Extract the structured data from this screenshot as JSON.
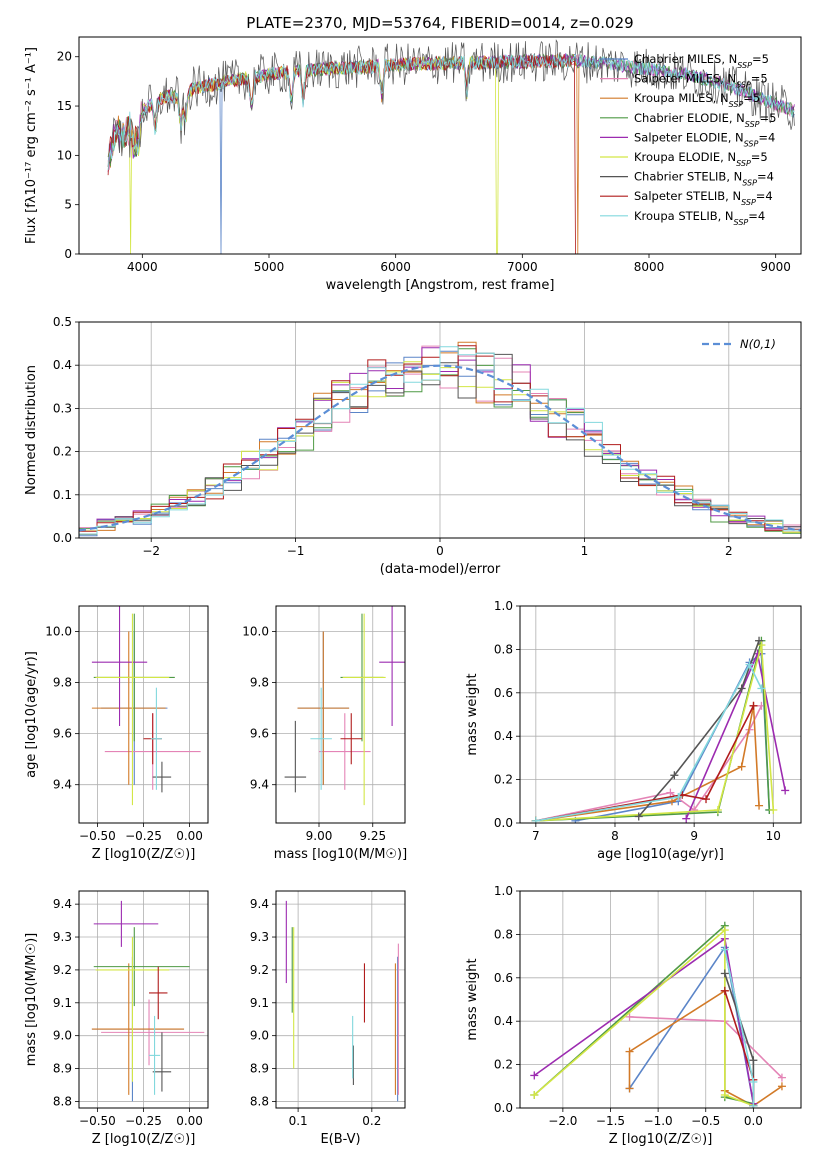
{
  "figure_title": "PLATE=2370, MJD=53764, FIBERID=0014, z=0.029",
  "colors": {
    "Chabrier MILES": "#5b85c8",
    "Salpeter MILES": "#e484b6",
    "Kroupa MILES": "#d27a28",
    "Chabrier ELODIE": "#4f9a45",
    "Salpeter ELODIE": "#9c2bb0",
    "Kroupa ELODIE": "#d3e646",
    "Chabrier STELIB": "#555555",
    "Salpeter STELIB": "#b01c1c",
    "Kroupa STELIB": "#82d8dd"
  },
  "chart_data": [
    {
      "id": "spectrum",
      "type": "line",
      "xlabel": "wavelength [Angstrom, rest frame]",
      "ylabel": "Flux [fλ10⁻¹⁷ erg cm⁻² s⁻¹ A⁻¹]",
      "xlim": [
        3500,
        9200
      ],
      "ylim": [
        0,
        22
      ],
      "xticks": [
        4000,
        5000,
        6000,
        7000,
        8000,
        9000
      ],
      "yticks": [
        0,
        5,
        10,
        15,
        20
      ],
      "legend_position": "top-right",
      "legend": [
        "Chabrier MILES, N_SSP=5",
        "Salpeter MILES, N_SSP=5",
        "Kroupa MILES, N_SSP=5",
        "Chabrier ELODIE, N_SSP=5",
        "Salpeter ELODIE, N_SSP=4",
        "Kroupa ELODIE, N_SSP=5",
        "Chabrier STELIB, N_SSP=4",
        "Salpeter STELIB, N_SSP=4",
        "Kroupa STELIB, N_SSP=4"
      ],
      "legend_keys": [
        "Chabrier MILES",
        "Salpeter MILES",
        "Kroupa MILES",
        "Chabrier ELODIE",
        "Salpeter ELODIE",
        "Kroupa ELODIE",
        "Chabrier STELIB",
        "Salpeter STELIB",
        "Kroupa STELIB"
      ],
      "continuum": {
        "x": [
          3720,
          3760,
          3800,
          3850,
          3900,
          3950,
          4000,
          4100,
          4200,
          4300,
          4400,
          4600,
          4800,
          5000,
          5200,
          5500,
          5800,
          6000,
          6300,
          6600,
          7000,
          7400,
          7600,
          8000,
          8300,
          8600,
          8800,
          9000,
          9150
        ],
        "y": [
          8.5,
          11,
          12.5,
          11.8,
          12.8,
          13.5,
          14.5,
          15.5,
          16,
          15.8,
          16.8,
          17.3,
          17.8,
          18.2,
          18.5,
          18.8,
          19,
          19.2,
          19.3,
          19.4,
          19.5,
          19.6,
          19.4,
          18.8,
          18.2,
          17.2,
          16.2,
          15.2,
          14.5
        ]
      },
      "series_span": {
        "Kroupa MILES": [
          3730,
          7450
        ],
        "Salpeter STELIB": [
          3730,
          7420
        ],
        "Kroupa ELODIE": [
          3880,
          6820
        ]
      },
      "series_drops": [
        {
          "series": "Kroupa ELODIE",
          "x": 3910
        },
        {
          "series": "Chabrier MILES",
          "x": 4620
        },
        {
          "series": "Kroupa ELODIE",
          "x": 6800
        },
        {
          "series": "Salpeter STELIB",
          "x": 7420
        },
        {
          "series": "Kroupa MILES",
          "x": 7440
        }
      ]
    },
    {
      "id": "residuals",
      "type": "bar",
      "histtype": "step",
      "xlabel": "(data-model)/error",
      "ylabel": "Normed distribution",
      "xlim": [
        -2.5,
        2.5
      ],
      "ylim": [
        0,
        0.5
      ],
      "xticks": [
        -2,
        -1,
        0,
        1,
        2
      ],
      "yticks": [
        0.0,
        0.1,
        0.2,
        0.3,
        0.4,
        0.5
      ],
      "bin_width": 0.125,
      "grid": true,
      "legend_position": "top-right",
      "reference_curve": {
        "name": "N(0,1)",
        "mean": 0,
        "sigma": 1,
        "color": "#5b8ed6",
        "style": "dashed"
      }
    },
    {
      "id": "age_vs_Z",
      "type": "scatter",
      "xlabel": "Z [log10(Z/Z☉)]",
      "ylabel": "age  [log10(age/yr)]",
      "xlim": [
        -0.6,
        0.1
      ],
      "ylim": [
        9.25,
        10.1
      ],
      "xticks": [
        -0.5,
        -0.25,
        0.0
      ],
      "yticks": [
        9.4,
        9.6,
        9.8,
        10.0
      ],
      "grid": true,
      "points": [
        {
          "series": "Chabrier MILES",
          "x": -0.3,
          "y": 9.7,
          "xerr": [
            0.18,
            0.18
          ],
          "yerr": [
            0.3,
            0.3
          ]
        },
        {
          "series": "Salpeter MILES",
          "x": -0.2,
          "y": 9.53,
          "xerr": [
            0.26,
            0.26
          ],
          "yerr": [
            0.15,
            0.15
          ]
        },
        {
          "series": "Kroupa MILES",
          "x": -0.33,
          "y": 9.7,
          "xerr": [
            0.2,
            0.2
          ],
          "yerr": [
            0.3,
            0.3
          ]
        },
        {
          "series": "Chabrier ELODIE",
          "x": -0.3,
          "y": 9.82,
          "xerr": [
            0.22,
            0.22
          ],
          "yerr": [
            0.25,
            0.25
          ]
        },
        {
          "series": "Salpeter ELODIE",
          "x": -0.38,
          "y": 9.88,
          "xerr": [
            0.15,
            0.15
          ],
          "yerr": [
            0.25,
            0.25
          ]
        },
        {
          "series": "Kroupa ELODIE",
          "x": -0.31,
          "y": 9.82,
          "xerr": [
            0.2,
            0.2
          ],
          "yerr": [
            0.5,
            0.25
          ]
        },
        {
          "series": "Chabrier STELIB",
          "x": -0.15,
          "y": 9.43,
          "xerr": [
            0.05,
            0.05
          ],
          "yerr": [
            0.06,
            0.06
          ]
        },
        {
          "series": "Salpeter STELIB",
          "x": -0.2,
          "y": 9.58,
          "xerr": [
            0.05,
            0.05
          ],
          "yerr": [
            0.1,
            0.1
          ]
        },
        {
          "series": "Kroupa STELIB",
          "x": -0.18,
          "y": 9.58,
          "xerr": [
            0.03,
            0.03
          ],
          "yerr": [
            0.2,
            0.2
          ]
        }
      ]
    },
    {
      "id": "age_vs_mass",
      "type": "scatter",
      "xlabel": "mass [log10(M/M☉)]",
      "ylabel": "",
      "xlim": [
        8.8,
        9.4
      ],
      "ylim": [
        9.25,
        10.1
      ],
      "xticks": [
        9.0,
        9.25
      ],
      "yticks": [
        9.4,
        9.6,
        9.8,
        10.0
      ],
      "grid": true,
      "points": [
        {
          "series": "Chabrier MILES",
          "x": 9.02,
          "y": 9.7,
          "xerr": [
            0.12,
            0.12
          ],
          "yerr": [
            0.3,
            0.3
          ]
        },
        {
          "series": "Salpeter MILES",
          "x": 9.12,
          "y": 9.53,
          "xerr": [
            0.12,
            0.12
          ],
          "yerr": [
            0.15,
            0.15
          ]
        },
        {
          "series": "Kroupa MILES",
          "x": 9.02,
          "y": 9.7,
          "xerr": [
            0.12,
            0.12
          ],
          "yerr": [
            0.3,
            0.3
          ]
        },
        {
          "series": "Chabrier ELODIE",
          "x": 9.2,
          "y": 9.82,
          "xerr": [
            0.1,
            0.1
          ],
          "yerr": [
            0.25,
            0.25
          ]
        },
        {
          "series": "Salpeter ELODIE",
          "x": 9.34,
          "y": 9.88,
          "xerr": [
            0.06,
            0.06
          ],
          "yerr": [
            0.25,
            0.25
          ]
        },
        {
          "series": "Kroupa ELODIE",
          "x": 9.21,
          "y": 9.82,
          "xerr": [
            0.1,
            0.1
          ],
          "yerr": [
            0.5,
            0.25
          ]
        },
        {
          "series": "Chabrier STELIB",
          "x": 8.89,
          "y": 9.43,
          "xerr": [
            0.05,
            0.05
          ],
          "yerr": [
            0.06,
            0.22
          ]
        },
        {
          "series": "Salpeter STELIB",
          "x": 9.15,
          "y": 9.58,
          "xerr": [
            0.05,
            0.05
          ],
          "yerr": [
            0.1,
            0.1
          ]
        },
        {
          "series": "Kroupa STELIB",
          "x": 9.01,
          "y": 9.58,
          "xerr": [
            0.05,
            0.05
          ],
          "yerr": [
            0.2,
            0.2
          ]
        }
      ]
    },
    {
      "id": "weight_vs_age",
      "type": "line",
      "xlabel": "age  [log10(age/yr)]",
      "ylabel": "mass weight",
      "xlim": [
        6.8,
        10.35
      ],
      "ylim": [
        0,
        1.0
      ],
      "xticks": [
        7,
        8,
        9,
        10
      ],
      "yticks": [
        0.0,
        0.2,
        0.4,
        0.6,
        0.8,
        1.0
      ],
      "grid": true,
      "series": [
        {
          "name": "Chabrier MILES",
          "x": [
            7.5,
            8.8,
            9.7,
            9.85,
            9.95
          ],
          "y": [
            0.01,
            0.1,
            0.74,
            0.78,
            0.06
          ]
        },
        {
          "name": "Salpeter MILES",
          "x": [
            7.0,
            8.7,
            9.0,
            9.7,
            9.85
          ],
          "y": [
            0.01,
            0.14,
            0.06,
            0.43,
            0.54
          ]
        },
        {
          "name": "Kroupa MILES",
          "x": [
            7.0,
            8.72,
            9.6,
            9.75,
            9.82
          ],
          "y": [
            0.01,
            0.1,
            0.26,
            0.54,
            0.08
          ]
        },
        {
          "name": "Chabrier ELODIE",
          "x": [
            7.0,
            9.3,
            9.85,
            9.95
          ],
          "y": [
            0.01,
            0.05,
            0.84,
            0.06
          ]
        },
        {
          "name": "Salpeter ELODIE",
          "x": [
            8.9,
            9.8,
            10.15
          ],
          "y": [
            0.02,
            0.78,
            0.15
          ]
        },
        {
          "name": "Kroupa ELODIE",
          "x": [
            7.0,
            9.3,
            9.85,
            10.0
          ],
          "y": [
            0.01,
            0.06,
            0.82,
            0.06
          ]
        },
        {
          "name": "Chabrier STELIB",
          "x": [
            8.3,
            8.75,
            9.6,
            9.82
          ],
          "y": [
            0.03,
            0.22,
            0.62,
            0.84
          ]
        },
        {
          "name": "Salpeter STELIB",
          "x": [
            7.0,
            8.85,
            9.15,
            9.75
          ],
          "y": [
            0.01,
            0.13,
            0.11,
            0.54
          ]
        },
        {
          "name": "Kroupa STELIB",
          "x": [
            7.0,
            8.8,
            9.7,
            9.85
          ],
          "y": [
            0.01,
            0.12,
            0.73,
            0.62
          ]
        }
      ]
    },
    {
      "id": "mass_vs_Z",
      "type": "scatter",
      "xlabel": "Z [log10(Z/Z☉)]",
      "ylabel": "mass [log10(M/M☉)]",
      "xlim": [
        -0.6,
        0.1
      ],
      "ylim": [
        8.78,
        9.44
      ],
      "xticks": [
        -0.5,
        -0.25,
        0.0
      ],
      "yticks": [
        8.8,
        8.9,
        9.0,
        9.1,
        9.2,
        9.3,
        9.4
      ],
      "grid": true,
      "points": [
        {
          "series": "Chabrier MILES",
          "x": -0.31,
          "y": 9.02,
          "xerr": [
            0.22,
            0.28
          ],
          "yerr": [
            0.22,
            0.22
          ]
        },
        {
          "series": "Salpeter MILES",
          "x": -0.22,
          "y": 9.01,
          "xerr": [
            0.26,
            0.3
          ],
          "yerr": [
            0.1,
            0.1
          ]
        },
        {
          "series": "Kroupa MILES",
          "x": -0.33,
          "y": 9.02,
          "xerr": [
            0.2,
            0.3
          ],
          "yerr": [
            0.2,
            0.2
          ]
        },
        {
          "series": "Chabrier ELODIE",
          "x": -0.3,
          "y": 9.21,
          "xerr": [
            0.22,
            0.3
          ],
          "yerr": [
            0.12,
            0.12
          ]
        },
        {
          "series": "Salpeter ELODIE",
          "x": -0.37,
          "y": 9.34,
          "xerr": [
            0.15,
            0.2
          ],
          "yerr": [
            0.07,
            0.07
          ]
        },
        {
          "series": "Kroupa ELODIE",
          "x": -0.31,
          "y": 9.2,
          "xerr": [
            0.2,
            0.2
          ],
          "yerr": [
            0.34,
            0.1
          ]
        },
        {
          "series": "Chabrier STELIB",
          "x": -0.15,
          "y": 8.89,
          "xerr": [
            0.05,
            0.05
          ],
          "yerr": [
            0.06,
            0.12
          ]
        },
        {
          "series": "Salpeter STELIB",
          "x": -0.17,
          "y": 9.13,
          "xerr": [
            0.05,
            0.05
          ],
          "yerr": [
            0.08,
            0.08
          ]
        },
        {
          "series": "Kroupa STELIB",
          "x": -0.19,
          "y": 8.94,
          "xerr": [
            0.03,
            0.03
          ],
          "yerr": [
            0.12,
            0.12
          ]
        }
      ]
    },
    {
      "id": "mass_vs_ebv",
      "type": "scatter",
      "xlabel": "E(B-V)",
      "ylabel": "",
      "xlim": [
        0.07,
        0.245
      ],
      "ylim": [
        8.78,
        9.44
      ],
      "xticks": [
        0.1,
        0.2
      ],
      "yticks": [
        8.8,
        8.9,
        9.0,
        9.1,
        9.2,
        9.3,
        9.4
      ],
      "grid": true,
      "points": [
        {
          "series": "Chabrier MILES",
          "x": 0.235,
          "y": 9.02,
          "yerr": [
            0.22,
            0.22
          ]
        },
        {
          "series": "Salpeter MILES",
          "x": 0.236,
          "y": 9.1,
          "yerr": [
            0.28,
            0.18
          ]
        },
        {
          "series": "Kroupa MILES",
          "x": 0.232,
          "y": 9.02,
          "yerr": [
            0.2,
            0.2
          ]
        },
        {
          "series": "Chabrier ELODIE",
          "x": 0.092,
          "y": 9.21,
          "yerr": [
            0.14,
            0.12
          ]
        },
        {
          "series": "Salpeter ELODIE",
          "x": 0.084,
          "y": 9.28,
          "yerr": [
            0.12,
            0.13
          ]
        },
        {
          "series": "Kroupa ELODIE",
          "x": 0.094,
          "y": 9.15,
          "yerr": [
            0.25,
            0.18
          ]
        },
        {
          "series": "Chabrier STELIB",
          "x": 0.175,
          "y": 8.93,
          "yerr": [
            0.08,
            0.04
          ]
        },
        {
          "series": "Salpeter STELIB",
          "x": 0.19,
          "y": 9.13,
          "yerr": [
            0.09,
            0.09
          ]
        },
        {
          "series": "Kroupa STELIB",
          "x": 0.174,
          "y": 8.97,
          "yerr": [
            0.1,
            0.09
          ]
        }
      ]
    },
    {
      "id": "weight_vs_Z",
      "type": "line",
      "xlabel": "Z [log10(Z/Z☉)]",
      "ylabel": "mass weight",
      "xlim": [
        -2.45,
        0.5
      ],
      "ylim": [
        0,
        1.0
      ],
      "xticks": [
        -2.0,
        -1.5,
        -1.0,
        -0.5,
        0.0
      ],
      "yticks": [
        0.0,
        0.2,
        0.4,
        0.6,
        0.8,
        1.0
      ],
      "grid": true,
      "series": [
        {
          "name": "Chabrier MILES",
          "x": [
            -1.3,
            -0.3,
            0.0
          ],
          "y": [
            0.09,
            0.74,
            0.02
          ]
        },
        {
          "name": "Salpeter MILES",
          "x": [
            -1.3,
            -0.3,
            0.3
          ],
          "y": [
            0.42,
            0.4,
            0.14
          ]
        },
        {
          "name": "Kroupa MILES",
          "x": [
            -1.3,
            -1.3,
            -0.3,
            -0.3,
            0.0,
            0.3
          ],
          "y": [
            0.09,
            0.26,
            0.54,
            0.08,
            0.01,
            0.1
          ]
        },
        {
          "name": "Chabrier ELODIE",
          "x": [
            -2.3,
            -0.3,
            -0.3,
            0.0
          ],
          "y": [
            0.06,
            0.84,
            0.05,
            0.02
          ]
        },
        {
          "name": "Salpeter ELODIE",
          "x": [
            -2.3,
            -0.3,
            0.0
          ],
          "y": [
            0.15,
            0.78,
            0.02
          ]
        },
        {
          "name": "Kroupa ELODIE",
          "x": [
            -2.3,
            -0.3,
            -0.3,
            0.0
          ],
          "y": [
            0.06,
            0.82,
            0.06,
            0.01
          ]
        },
        {
          "name": "Chabrier STELIB",
          "x": [
            -0.3,
            0.0,
            0.0
          ],
          "y": [
            0.62,
            0.22,
            0.01
          ]
        },
        {
          "name": "Salpeter STELIB",
          "x": [
            -0.3,
            0.0,
            0.0
          ],
          "y": [
            0.54,
            0.13,
            0.01
          ]
        },
        {
          "name": "Kroupa STELIB",
          "x": [
            -0.3,
            0.0,
            0.0
          ],
          "y": [
            0.73,
            0.12,
            0.01
          ]
        }
      ]
    }
  ]
}
